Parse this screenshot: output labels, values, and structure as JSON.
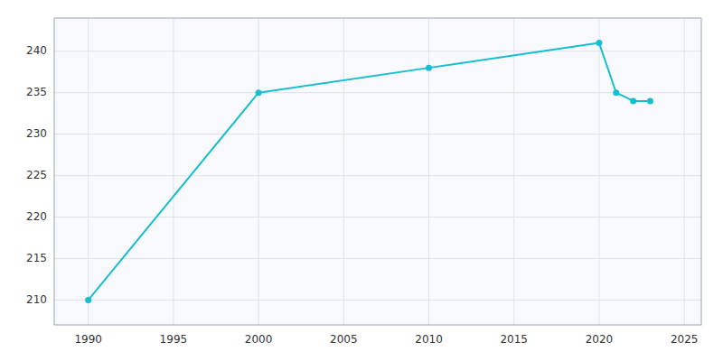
{
  "chart_data": {
    "type": "line",
    "x": [
      1990,
      2000,
      2010,
      2020,
      2021,
      2022,
      2023
    ],
    "values": [
      210,
      235,
      238,
      241,
      235,
      234,
      234
    ],
    "color": "#17becf",
    "marker": "circle",
    "xlim": [
      1988,
      2026
    ],
    "ylim": [
      207,
      244
    ],
    "xticks": [
      1990,
      1995,
      2000,
      2005,
      2010,
      2015,
      2020,
      2025
    ],
    "yticks": [
      210,
      215,
      220,
      225,
      230,
      235,
      240
    ],
    "grid": true
  }
}
